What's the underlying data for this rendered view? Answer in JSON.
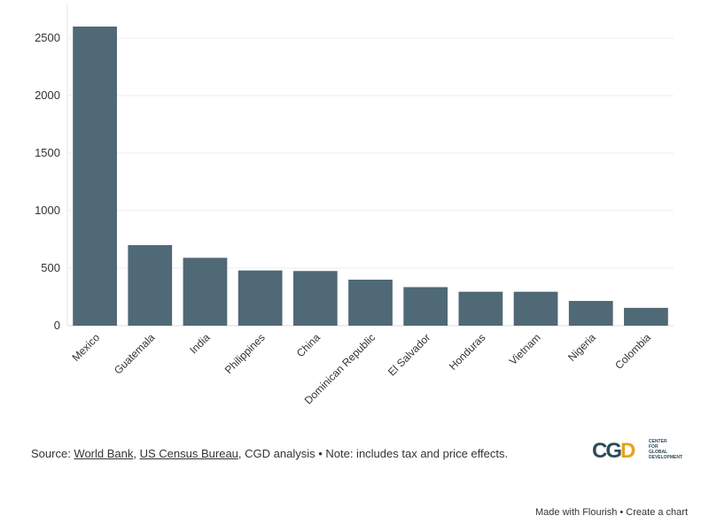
{
  "chart_data": {
    "type": "bar",
    "categories": [
      "Mexico",
      "Guatemala",
      "India",
      "Philippines",
      "China",
      "Dominican Republic",
      "El Salvador",
      "Honduras",
      "Vietnam",
      "Nigeria",
      "Colombia"
    ],
    "values": [
      2600,
      700,
      590,
      480,
      475,
      400,
      335,
      295,
      295,
      215,
      155
    ],
    "ylim": [
      0,
      2500
    ],
    "yticks": [
      0,
      500,
      1000,
      1500,
      2000,
      2500
    ],
    "title": "",
    "xlabel": "",
    "ylabel": "",
    "grid": true,
    "bar_color": "#4f6976"
  },
  "source": {
    "prefix": "Source: ",
    "link1": "World Bank",
    "sep1": ", ",
    "link2": "US Census Bureau",
    "suffix": ", CGD analysis • Note: includes tax and price effects."
  },
  "logo": {
    "mark_left": "CG",
    "mark_right": "D",
    "text": "CENTER\nFOR\nGLOBAL\nDEVELOPMENT"
  },
  "footer": {
    "made_with": "Made with Flourish",
    "sep": " • ",
    "create": "Create a chart"
  }
}
